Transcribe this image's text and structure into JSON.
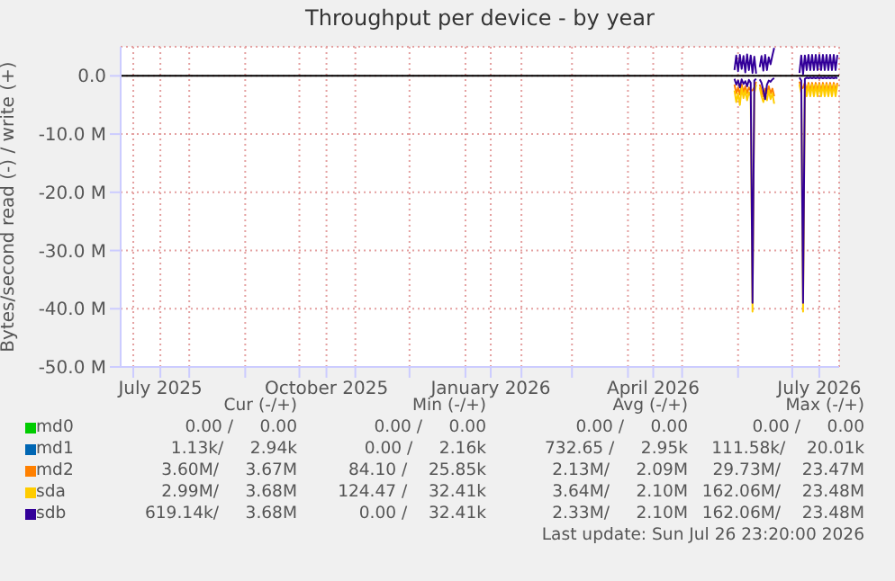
{
  "chart_data": {
    "type": "line",
    "title": "Throughput per device - by year",
    "ylabel": "Bytes/second read (-) / write (+)",
    "x": [
      "2026-05-30",
      "2026-05-31",
      "2026-06-01",
      "2026-06-02",
      "2026-06-03",
      "2026-06-04",
      "2026-06-05",
      "2026-06-06",
      "2026-06-07",
      "2026-06-08",
      "2026-06-09",
      "2026-06-10",
      "2026-06-11",
      "2026-06-12",
      "2026-06-13",
      "2026-06-14",
      "2026-06-15",
      "2026-06-16",
      "2026-06-17",
      "2026-06-18",
      "2026-06-19",
      "2026-06-20",
      "2026-06-21",
      "2026-06-22",
      "2026-07-04",
      "2026-07-05",
      "2026-07-06",
      "2026-07-07",
      "2026-07-08",
      "2026-07-09",
      "2026-07-10",
      "2026-07-11",
      "2026-07-12",
      "2026-07-13",
      "2026-07-14",
      "2026-07-15",
      "2026-07-16",
      "2026-07-17",
      "2026-07-18",
      "2026-07-19",
      "2026-07-20",
      "2026-07-21",
      "2026-07-22",
      "2026-07-23",
      "2026-07-24",
      "2026-07-25",
      "2026-07-26"
    ],
    "series": [
      {
        "name": "md0",
        "color": "#00cc00",
        "values": [
          null,
          null,
          null,
          null,
          null,
          null,
          null,
          null,
          null,
          null,
          null,
          null,
          null,
          null,
          null,
          null,
          null,
          null,
          null,
          null,
          null,
          null,
          null,
          null,
          null,
          null,
          null,
          null,
          null,
          null,
          null,
          null,
          null,
          null,
          null,
          null,
          null,
          null,
          null,
          null,
          null,
          null,
          null,
          null,
          null,
          null,
          null
        ]
      },
      {
        "name": "md1",
        "color": "#0066b3",
        "values": [
          null,
          null,
          null,
          null,
          null,
          null,
          null,
          null,
          null,
          null,
          null,
          null,
          null,
          null,
          null,
          null,
          null,
          null,
          null,
          null,
          null,
          null,
          null,
          null,
          null,
          null,
          null,
          null,
          null,
          null,
          null,
          null,
          null,
          null,
          null,
          null,
          null,
          null,
          null,
          null,
          null,
          null,
          null,
          null,
          null,
          null,
          null
        ]
      },
      {
        "name": "md2",
        "color": "#ff8000",
        "values": [
          null,
          null,
          null,
          null,
          null,
          null,
          null,
          null,
          null,
          null,
          null,
          null,
          null,
          null,
          null,
          null,
          null,
          null,
          null,
          null,
          null,
          null,
          null,
          null,
          null,
          null,
          null,
          null,
          null,
          null,
          null,
          null,
          null,
          null,
          null,
          null,
          null,
          null,
          null,
          null,
          null,
          null,
          null,
          null,
          null,
          null,
          null
        ]
      },
      {
        "color": "#ff8000",
        "values": [
          -1.5,
          -3.0,
          -2.0,
          -3.2,
          -1.5,
          -2.8,
          -1.8,
          -3.0,
          -2.0,
          -2.5,
          -2.5,
          -2.0,
          -1.0,
          null,
          -1.5,
          -2.5,
          -3.5,
          -2.2,
          -3.0,
          -1.8,
          -3.0,
          -2.2,
          -3.5,
          null,
          null,
          -1.0,
          -2.2,
          -2.0,
          -1.2,
          -2.6,
          -1.2,
          -2.6,
          -1.2,
          -2.6,
          -1.2,
          -2.6,
          -1.2,
          -2.6,
          -1.2,
          -2.6,
          -1.2,
          -2.6,
          -1.2,
          -2.6,
          -1.2,
          -2.6,
          -1.2
        ]
      },
      {
        "name": "sda",
        "color": "#ffcc00",
        "values": [
          null,
          null,
          null,
          null,
          null,
          null,
          null,
          null,
          null,
          null,
          null,
          null,
          null,
          null,
          null,
          null,
          null,
          null,
          null,
          null,
          null,
          null,
          null,
          null,
          null,
          null,
          null,
          null,
          null,
          null,
          null,
          null,
          null,
          null,
          null,
          null,
          null,
          null,
          null,
          null,
          null,
          null,
          null,
          null,
          null,
          null,
          null
        ]
      },
      {
        "color": "#ffcc00",
        "values": [
          -2.5,
          -4.5,
          -3.0,
          -5.0,
          -2.0,
          -3.8,
          -2.5,
          -4.2,
          -2.8,
          -3.5,
          -40.5,
          -3.0,
          -1.5,
          null,
          -2.0,
          -3.5,
          -4.5,
          -3.0,
          -4.2,
          -2.5,
          -4.0,
          -3.0,
          -4.8,
          null,
          null,
          -1.5,
          -3.0,
          -40.5,
          -1.5,
          -3.5,
          -1.5,
          -3.5,
          -1.5,
          -3.5,
          -1.5,
          -3.5,
          -1.5,
          -3.5,
          -1.5,
          -3.5,
          -1.5,
          -3.5,
          -1.5,
          -3.5,
          -1.5,
          -3.5,
          -1.5
        ]
      },
      {
        "name": "sdb",
        "color": "#330099",
        "values": [
          1.0,
          3.5,
          0.8,
          3.6,
          1.2,
          3.4,
          0.6,
          3.7,
          1.0,
          3.5,
          0.5,
          3.3,
          0.4,
          null,
          1.5,
          3.4,
          0.9,
          3.6,
          1.0,
          3.2,
          2.0,
          3.5,
          4.8,
          null,
          null,
          0.5,
          3.5,
          0.3,
          3.5,
          1.0,
          3.6,
          1.0,
          3.6,
          1.0,
          3.6,
          1.0,
          3.6,
          1.0,
          3.6,
          1.0,
          3.6,
          1.0,
          3.6,
          1.0,
          3.6,
          1.0,
          3.6
        ]
      },
      {
        "color": "#330099",
        "values": [
          -0.5,
          -1.5,
          -0.8,
          -2.0,
          -0.6,
          -1.4,
          -0.9,
          -1.8,
          -0.7,
          -1.2,
          -39,
          -0.8,
          -0.5,
          null,
          -0.6,
          -1.2,
          -2.5,
          -4.0,
          -1.5,
          -0.8,
          -1.0,
          -0.6,
          -0.4,
          null,
          null,
          -0.3,
          -0.8,
          -39,
          -0.5,
          -0.3,
          -0.4,
          -0.3,
          -0.4,
          -0.3,
          -0.4,
          -0.3,
          -0.4,
          -0.3,
          -0.4,
          -0.3,
          -0.4,
          -0.3,
          -0.4,
          -0.3,
          -0.4,
          -0.3,
          -0.4
        ]
      }
    ],
    "xlim": [
      "2025-06-24",
      "2026-07-27"
    ],
    "xticks": [
      {
        "value": "2025-07-01",
        "label": null
      },
      {
        "value": "2025-07-16",
        "label": "July 2025"
      },
      {
        "value": "2025-08-01",
        "label": null
      },
      {
        "value": "2025-09-01",
        "label": null
      },
      {
        "value": "2025-10-01",
        "label": null
      },
      {
        "value": "2025-10-16",
        "label": "October 2025"
      },
      {
        "value": "2025-11-01",
        "label": null
      },
      {
        "value": "2025-12-01",
        "label": null
      },
      {
        "value": "2026-01-01",
        "label": null
      },
      {
        "value": "2026-01-15",
        "label": "January 2026"
      },
      {
        "value": "2026-02-01",
        "label": null
      },
      {
        "value": "2026-03-01",
        "label": null
      },
      {
        "value": "2026-04-01",
        "label": null
      },
      {
        "value": "2026-04-15",
        "label": "April 2026"
      },
      {
        "value": "2026-05-01",
        "label": null
      },
      {
        "value": "2026-06-01",
        "label": null
      },
      {
        "value": "2026-07-01",
        "label": null
      },
      {
        "value": "2026-07-16",
        "label": "July 2026"
      }
    ],
    "ylim": [
      -50,
      5
    ],
    "yticks": [
      {
        "value": -50,
        "label": "-50.0 M"
      },
      {
        "value": -40,
        "label": "-40.0 M"
      },
      {
        "value": -30,
        "label": "-30.0 M"
      },
      {
        "value": -20,
        "label": "-20.0 M"
      },
      {
        "value": -10,
        "label": "-10.0 M"
      },
      {
        "value": 0,
        "label": "0.0"
      }
    ],
    "ref_lines": [
      {
        "axis": "y",
        "value": 0,
        "color": "#000000"
      }
    ],
    "grid": true,
    "legend": "bottom",
    "annotations": [
      "Cur (-/+)",
      "Min (-/+)",
      "Avg (-/+)",
      "Max (-/+)",
      "0.00 /     0.00",
      "0.00 /     0.00",
      "0.00 /     0.00",
      "0.00 /     0.00",
      "1.13k/     2.94k",
      "0.00 /     2.16k",
      "732.65 /     2.95k",
      "111.58k/    20.01k",
      "3.60M/     3.67M",
      "84.10 /    25.85k",
      "2.13M/     2.09M",
      "29.73M/    23.47M",
      "2.99M/     3.68M",
      "124.47 /    32.41k",
      "3.64M/     2.10M",
      "162.06M/    23.48M",
      "619.14k/     3.68M",
      "0.00 /    32.41k",
      "2.33M/     2.10M",
      "162.06M/    23.48M",
      "Last update: Sun Jul 26 23:20:00 2026"
    ]
  }
}
